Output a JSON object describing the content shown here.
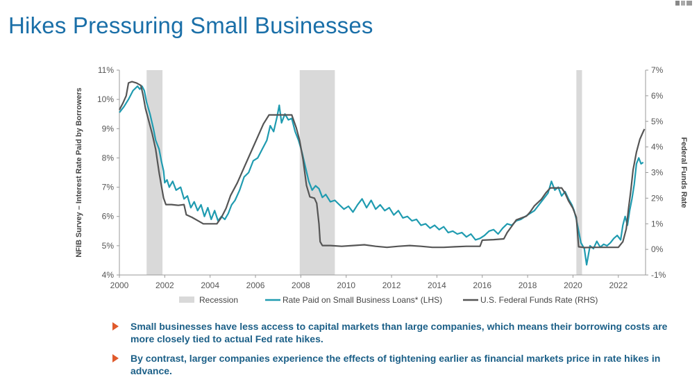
{
  "title": "Hikes Pressuring Small Businesses",
  "bullets": [
    "Small businesses have less access to capital markets than large companies, which means their borrowing costs are more closely tied to actual Fed rate hikes.",
    "By contrast, larger companies experience the effects of tightening earlier as financial markets price in rate hikes in advance."
  ],
  "colors": {
    "teal": "#1f9bb0",
    "gray": "#555555",
    "recession": "#d9d9d9",
    "title": "#1a6fa8",
    "bullet_text": "#1b5f87",
    "arrow": "#e05a2b"
  },
  "chart_data": {
    "type": "line",
    "xlabel": "",
    "ylabel_left": "NFIB Survey – Interest Rate Paid by Borrowers",
    "ylabel_right": "Federal Funds Rate",
    "xlim": [
      2000,
      2023.2
    ],
    "ylim_left": [
      4,
      11
    ],
    "ylim_right": [
      -1,
      7
    ],
    "x_ticks": [
      2000,
      2002,
      2004,
      2006,
      2008,
      2010,
      2012,
      2014,
      2016,
      2018,
      2020,
      2022
    ],
    "x_tick_labels": [
      "2000",
      "2002",
      "2004",
      "2006",
      "2008",
      "2010",
      "2012",
      "2014",
      "2016",
      "2018",
      "2020",
      "2022"
    ],
    "y_left_ticks": [
      4,
      5,
      6,
      7,
      8,
      9,
      10,
      11
    ],
    "y_left_tick_labels": [
      "4%",
      "5%",
      "6%",
      "7%",
      "8%",
      "9%",
      "10%",
      "11%"
    ],
    "y_right_ticks": [
      -1,
      0,
      1,
      2,
      3,
      4,
      5,
      6,
      7
    ],
    "y_right_tick_labels": [
      "-1%",
      "0%",
      "1%",
      "2%",
      "3%",
      "4%",
      "5%",
      "6%",
      "7%"
    ],
    "recessions": [
      [
        2001.2,
        2001.9
      ],
      [
        2007.95,
        2009.5
      ],
      [
        2020.15,
        2020.4
      ]
    ],
    "legend": [
      {
        "label": "Recession",
        "kind": "box"
      },
      {
        "label": "Rate Paid on Small Business Loans* (LHS)",
        "kind": "line",
        "series": 0
      },
      {
        "label": "U.S. Federal Funds Rate (RHS)",
        "kind": "line",
        "series": 1
      }
    ],
    "series": [
      {
        "name": "Rate Paid on Small Business Loans* (LHS)",
        "axis": "left",
        "points": [
          [
            2000.0,
            9.55
          ],
          [
            2000.2,
            9.75
          ],
          [
            2000.4,
            10.0
          ],
          [
            2000.6,
            10.3
          ],
          [
            2000.8,
            10.45
          ],
          [
            2000.9,
            10.35
          ],
          [
            2001.0,
            10.45
          ],
          [
            2001.1,
            10.3
          ],
          [
            2001.2,
            9.9
          ],
          [
            2001.35,
            9.5
          ],
          [
            2001.5,
            9.0
          ],
          [
            2001.6,
            8.6
          ],
          [
            2001.75,
            8.3
          ],
          [
            2001.85,
            7.9
          ],
          [
            2001.95,
            7.55
          ],
          [
            2002.0,
            7.15
          ],
          [
            2002.1,
            7.25
          ],
          [
            2002.2,
            7.0
          ],
          [
            2002.35,
            7.2
          ],
          [
            2002.5,
            6.9
          ],
          [
            2002.7,
            7.0
          ],
          [
            2002.85,
            6.6
          ],
          [
            2003.0,
            6.7
          ],
          [
            2003.15,
            6.3
          ],
          [
            2003.3,
            6.5
          ],
          [
            2003.45,
            6.2
          ],
          [
            2003.6,
            6.4
          ],
          [
            2003.75,
            6.0
          ],
          [
            2003.9,
            6.3
          ],
          [
            2004.05,
            5.9
          ],
          [
            2004.2,
            6.2
          ],
          [
            2004.35,
            5.85
          ],
          [
            2004.5,
            6.0
          ],
          [
            2004.65,
            5.9
          ],
          [
            2004.8,
            6.1
          ],
          [
            2004.95,
            6.4
          ],
          [
            2005.1,
            6.55
          ],
          [
            2005.3,
            6.9
          ],
          [
            2005.5,
            7.35
          ],
          [
            2005.7,
            7.5
          ],
          [
            2005.9,
            7.9
          ],
          [
            2006.1,
            8.0
          ],
          [
            2006.3,
            8.3
          ],
          [
            2006.5,
            8.6
          ],
          [
            2006.65,
            9.1
          ],
          [
            2006.8,
            8.9
          ],
          [
            2006.95,
            9.4
          ],
          [
            2007.05,
            9.8
          ],
          [
            2007.15,
            9.2
          ],
          [
            2007.3,
            9.5
          ],
          [
            2007.45,
            9.3
          ],
          [
            2007.6,
            9.35
          ],
          [
            2007.75,
            8.9
          ],
          [
            2007.9,
            8.6
          ],
          [
            2008.05,
            8.2
          ],
          [
            2008.2,
            7.7
          ],
          [
            2008.35,
            7.2
          ],
          [
            2008.5,
            6.9
          ],
          [
            2008.65,
            7.05
          ],
          [
            2008.8,
            6.95
          ],
          [
            2008.95,
            6.65
          ],
          [
            2009.1,
            6.75
          ],
          [
            2009.3,
            6.5
          ],
          [
            2009.5,
            6.55
          ],
          [
            2009.7,
            6.4
          ],
          [
            2009.9,
            6.25
          ],
          [
            2010.1,
            6.35
          ],
          [
            2010.3,
            6.15
          ],
          [
            2010.5,
            6.4
          ],
          [
            2010.7,
            6.6
          ],
          [
            2010.9,
            6.3
          ],
          [
            2011.1,
            6.55
          ],
          [
            2011.3,
            6.25
          ],
          [
            2011.5,
            6.4
          ],
          [
            2011.7,
            6.2
          ],
          [
            2011.9,
            6.3
          ],
          [
            2012.1,
            6.05
          ],
          [
            2012.3,
            6.2
          ],
          [
            2012.5,
            5.95
          ],
          [
            2012.7,
            6.0
          ],
          [
            2012.9,
            5.85
          ],
          [
            2013.1,
            5.9
          ],
          [
            2013.3,
            5.7
          ],
          [
            2013.5,
            5.75
          ],
          [
            2013.7,
            5.6
          ],
          [
            2013.9,
            5.7
          ],
          [
            2014.1,
            5.55
          ],
          [
            2014.3,
            5.65
          ],
          [
            2014.5,
            5.45
          ],
          [
            2014.7,
            5.5
          ],
          [
            2014.9,
            5.4
          ],
          [
            2015.1,
            5.45
          ],
          [
            2015.3,
            5.3
          ],
          [
            2015.5,
            5.4
          ],
          [
            2015.7,
            5.2
          ],
          [
            2015.9,
            5.25
          ],
          [
            2016.1,
            5.35
          ],
          [
            2016.3,
            5.5
          ],
          [
            2016.5,
            5.55
          ],
          [
            2016.7,
            5.4
          ],
          [
            2016.9,
            5.6
          ],
          [
            2017.1,
            5.75
          ],
          [
            2017.3,
            5.7
          ],
          [
            2017.5,
            5.85
          ],
          [
            2017.7,
            5.9
          ],
          [
            2017.9,
            6.0
          ],
          [
            2018.1,
            6.1
          ],
          [
            2018.3,
            6.2
          ],
          [
            2018.5,
            6.4
          ],
          [
            2018.7,
            6.6
          ],
          [
            2018.9,
            6.8
          ],
          [
            2019.05,
            7.2
          ],
          [
            2019.2,
            6.9
          ],
          [
            2019.35,
            7.0
          ],
          [
            2019.5,
            6.7
          ],
          [
            2019.65,
            6.85
          ],
          [
            2019.8,
            6.6
          ],
          [
            2019.95,
            6.4
          ],
          [
            2020.05,
            6.2
          ],
          [
            2020.15,
            5.9
          ],
          [
            2020.25,
            5.5
          ],
          [
            2020.35,
            5.1
          ],
          [
            2020.5,
            4.9
          ],
          [
            2020.6,
            4.35
          ],
          [
            2020.75,
            5.0
          ],
          [
            2020.9,
            4.9
          ],
          [
            2021.05,
            5.15
          ],
          [
            2021.2,
            4.95
          ],
          [
            2021.35,
            5.05
          ],
          [
            2021.5,
            5.0
          ],
          [
            2021.65,
            5.1
          ],
          [
            2021.8,
            5.25
          ],
          [
            2021.95,
            5.35
          ],
          [
            2022.1,
            5.2
          ],
          [
            2022.2,
            5.7
          ],
          [
            2022.3,
            6.0
          ],
          [
            2022.4,
            5.7
          ],
          [
            2022.5,
            6.2
          ],
          [
            2022.6,
            6.6
          ],
          [
            2022.7,
            7.1
          ],
          [
            2022.8,
            7.8
          ],
          [
            2022.9,
            8.0
          ],
          [
            2023.0,
            7.8
          ],
          [
            2023.1,
            7.85
          ]
        ]
      },
      {
        "name": "U.S. Federal Funds Rate (RHS)",
        "axis": "right",
        "points": [
          [
            2000.0,
            5.45
          ],
          [
            2000.15,
            5.7
          ],
          [
            2000.3,
            6.0
          ],
          [
            2000.4,
            6.5
          ],
          [
            2000.55,
            6.55
          ],
          [
            2000.75,
            6.5
          ],
          [
            2000.95,
            6.4
          ],
          [
            2001.05,
            6.0
          ],
          [
            2001.15,
            5.5
          ],
          [
            2001.3,
            5.0
          ],
          [
            2001.45,
            4.5
          ],
          [
            2001.6,
            3.9
          ],
          [
            2001.75,
            3.0
          ],
          [
            2001.85,
            2.5
          ],
          [
            2001.95,
            2.0
          ],
          [
            2002.05,
            1.75
          ],
          [
            2002.3,
            1.75
          ],
          [
            2002.6,
            1.72
          ],
          [
            2002.85,
            1.75
          ],
          [
            2002.95,
            1.35
          ],
          [
            2003.2,
            1.25
          ],
          [
            2003.5,
            1.1
          ],
          [
            2003.7,
            1.0
          ],
          [
            2004.0,
            1.0
          ],
          [
            2004.3,
            1.0
          ],
          [
            2004.5,
            1.25
          ],
          [
            2004.7,
            1.6
          ],
          [
            2004.9,
            2.1
          ],
          [
            2005.2,
            2.6
          ],
          [
            2005.5,
            3.2
          ],
          [
            2005.8,
            3.8
          ],
          [
            2006.1,
            4.4
          ],
          [
            2006.35,
            4.9
          ],
          [
            2006.6,
            5.25
          ],
          [
            2007.0,
            5.25
          ],
          [
            2007.4,
            5.25
          ],
          [
            2007.6,
            5.25
          ],
          [
            2007.8,
            4.75
          ],
          [
            2007.95,
            4.25
          ],
          [
            2008.1,
            3.5
          ],
          [
            2008.25,
            2.5
          ],
          [
            2008.4,
            2.05
          ],
          [
            2008.6,
            2.0
          ],
          [
            2008.7,
            1.8
          ],
          [
            2008.8,
            1.0
          ],
          [
            2008.85,
            0.3
          ],
          [
            2008.95,
            0.15
          ],
          [
            2009.3,
            0.15
          ],
          [
            2009.8,
            0.12
          ],
          [
            2010.3,
            0.15
          ],
          [
            2010.8,
            0.18
          ],
          [
            2011.3,
            0.12
          ],
          [
            2011.8,
            0.08
          ],
          [
            2012.3,
            0.12
          ],
          [
            2012.8,
            0.15
          ],
          [
            2013.3,
            0.12
          ],
          [
            2013.8,
            0.08
          ],
          [
            2014.3,
            0.08
          ],
          [
            2014.8,
            0.1
          ],
          [
            2015.3,
            0.12
          ],
          [
            2015.9,
            0.12
          ],
          [
            2016.0,
            0.36
          ],
          [
            2016.5,
            0.38
          ],
          [
            2016.95,
            0.41
          ],
          [
            2017.1,
            0.66
          ],
          [
            2017.3,
            0.9
          ],
          [
            2017.5,
            1.15
          ],
          [
            2017.95,
            1.3
          ],
          [
            2018.1,
            1.45
          ],
          [
            2018.3,
            1.7
          ],
          [
            2018.6,
            1.95
          ],
          [
            2018.8,
            2.2
          ],
          [
            2019.0,
            2.4
          ],
          [
            2019.5,
            2.4
          ],
          [
            2019.65,
            2.2
          ],
          [
            2019.8,
            1.9
          ],
          [
            2020.0,
            1.6
          ],
          [
            2020.15,
            1.25
          ],
          [
            2020.25,
            0.1
          ],
          [
            2020.5,
            0.07
          ],
          [
            2021.0,
            0.08
          ],
          [
            2021.5,
            0.08
          ],
          [
            2022.0,
            0.08
          ],
          [
            2022.2,
            0.3
          ],
          [
            2022.35,
            0.8
          ],
          [
            2022.45,
            1.6
          ],
          [
            2022.55,
            2.3
          ],
          [
            2022.65,
            3.1
          ],
          [
            2022.8,
            3.8
          ],
          [
            2022.95,
            4.3
          ],
          [
            2023.1,
            4.6
          ],
          [
            2023.15,
            4.7
          ]
        ]
      }
    ]
  }
}
